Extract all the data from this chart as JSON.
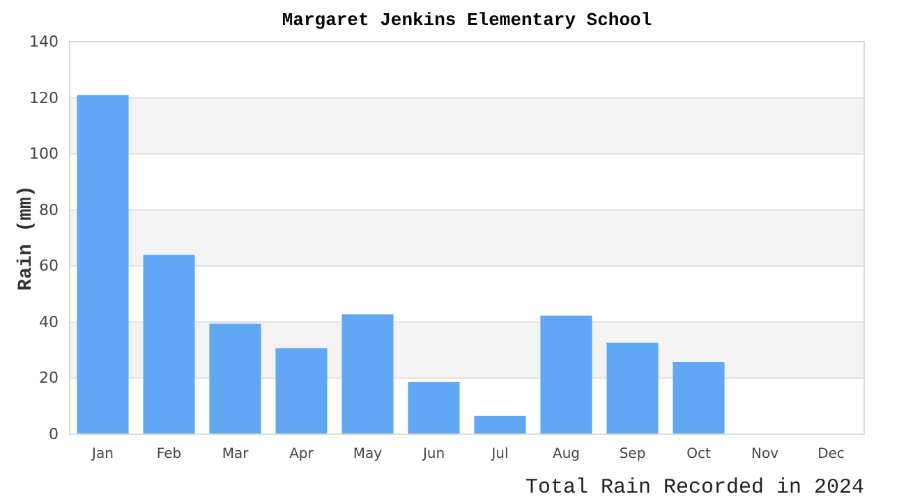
{
  "chart_data": {
    "type": "bar",
    "title": "Margaret Jenkins Elementary School",
    "xlabel": "Total Rain Recorded in 2024",
    "ylabel": "Rain (mm)",
    "categories": [
      "Jan",
      "Feb",
      "Mar",
      "Apr",
      "May",
      "Jun",
      "Jul",
      "Aug",
      "Sep",
      "Oct",
      "Nov",
      "Dec"
    ],
    "values": [
      121,
      64,
      39.4,
      30.7,
      42.8,
      18.6,
      6.5,
      42.3,
      32.6,
      25.8,
      null,
      null
    ],
    "color": "#60a8f4",
    "ylim": [
      0,
      140
    ],
    "yticks": [
      0,
      20,
      40,
      60,
      80,
      100,
      120,
      140
    ],
    "grid": "y"
  }
}
